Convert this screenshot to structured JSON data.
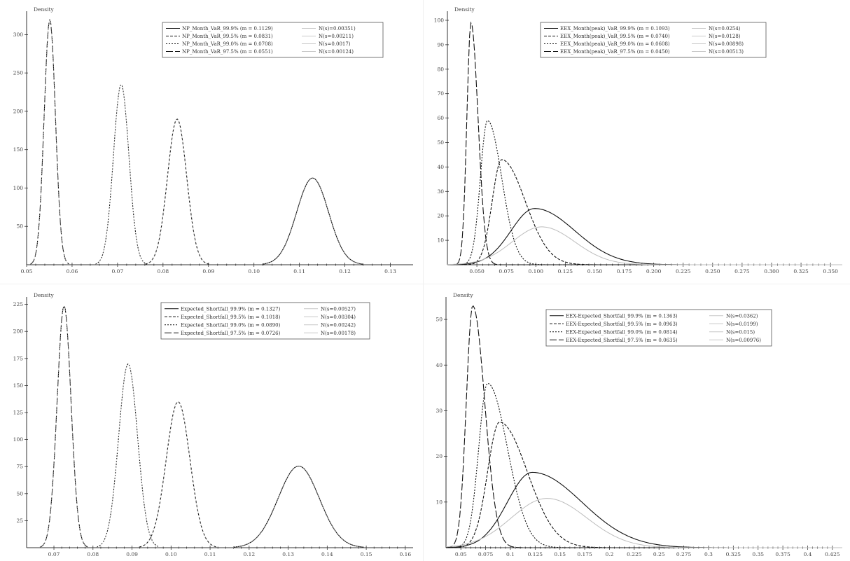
{
  "chart_data": [
    {
      "type": "line",
      "ylabel": "Density",
      "xlim": [
        0.05,
        0.135
      ],
      "ylim": [
        0,
        325
      ],
      "xticks": [
        0.05,
        0.06,
        0.07,
        0.08,
        0.09,
        0.1,
        0.11,
        0.12,
        0.13
      ],
      "xtick_labels": [
        "0.05",
        "0.06",
        "0.07",
        "0.08",
        "0.09",
        "0.10",
        "0.11",
        "0.12",
        "0.13"
      ],
      "yticks": [
        50,
        100,
        150,
        200,
        250,
        300
      ],
      "ytick_labels": [
        "50",
        "100",
        "150",
        "200",
        "250",
        "300"
      ],
      "legend": [
        {
          "label": "NP_Month_VaR_99.9% (m = 0.1129)",
          "normal": "N(s)=0.00351)",
          "dash": "none"
        },
        {
          "label": "NP_Month_VaR_99.5% (m = 0.0831)",
          "normal": "N(s=0.00211)",
          "dash": "4,2"
        },
        {
          "label": "NP_Month_VaR_99.0% (m = 0.0708)",
          "normal": "N(s=0.0017)",
          "dash": "2,2"
        },
        {
          "label": "NP_Month_VaR_97.5% (m = 0.0551)",
          "normal": "N(s=0.00124)",
          "dash": "10,3"
        }
      ],
      "series": [
        {
          "mean": 0.1129,
          "sd": 0.00351,
          "peak": 113,
          "dash": "none",
          "kind": "normal"
        },
        {
          "mean": 0.0831,
          "sd": 0.00211,
          "peak": 190,
          "dash": "4,2",
          "kind": "normal"
        },
        {
          "mean": 0.0708,
          "sd": 0.0017,
          "peak": 235,
          "dash": "2,2",
          "kind": "normal"
        },
        {
          "mean": 0.0551,
          "sd": 0.00124,
          "peak": 320,
          "dash": "10,3",
          "kind": "normal"
        }
      ]
    },
    {
      "type": "line",
      "ylabel": "Density",
      "xlim": [
        0.025,
        0.36
      ],
      "ylim": [
        0,
        102
      ],
      "xticks": [
        0.05,
        0.075,
        0.1,
        0.125,
        0.15,
        0.175,
        0.2,
        0.225,
        0.25,
        0.275,
        0.3,
        0.325,
        0.35
      ],
      "xtick_labels": [
        "0.050",
        "0.075",
        "0.100",
        "0.125",
        "0.150",
        "0.175",
        "0.200",
        "0.225",
        "0.250",
        "0.275",
        "0.300",
        "0.325",
        "0.350"
      ],
      "yticks": [
        10,
        20,
        30,
        40,
        50,
        60,
        70,
        80,
        90,
        100
      ],
      "ytick_labels": [
        "10",
        "20",
        "30",
        "40",
        "50",
        "60",
        "70",
        "80",
        "90",
        "100"
      ],
      "legend": [
        {
          "label": "EEX_Month(peak)_VaR_99.9% (m = 0.1093)",
          "normal": "N(s=0.0254)",
          "dash": "none"
        },
        {
          "label": "EEX_Month(peak)_VaR_99.5% (m = 0.0740)",
          "normal": "N(s=0.0128)",
          "dash": "4,2"
        },
        {
          "label": "EEX_Month(peak)_VaR_99.0% (m = 0.0608)",
          "normal": "N(s=0.00898)",
          "dash": "2,2"
        },
        {
          "label": "EEX_Month(peak)_VaR_97.5% (m = 0.0450)",
          "normal": "N(s=0.00513)",
          "dash": "10,3"
        }
      ],
      "series": [
        {
          "mode": 0.099,
          "peak": 23,
          "left": 0.02,
          "right": 0.034,
          "dash": "none",
          "kind": "skew"
        },
        {
          "mode": 0.071,
          "peak": 43,
          "left": 0.008,
          "right": 0.02,
          "dash": "4,2",
          "kind": "skew"
        },
        {
          "mode": 0.059,
          "peak": 59,
          "left": 0.006,
          "right": 0.012,
          "dash": "2,2",
          "kind": "skew"
        },
        {
          "mode": 0.045,
          "peak": 99,
          "left": 0.0035,
          "right": 0.006,
          "dash": "10,3",
          "kind": "skew"
        },
        {
          "mode": 0.105,
          "peak": 15.5,
          "left": 0.025,
          "right": 0.028,
          "dash": "none",
          "kind": "skew",
          "light": true
        }
      ]
    },
    {
      "type": "line",
      "ylabel": "Density",
      "xlim": [
        0.063,
        0.162
      ],
      "ylim": [
        0,
        228
      ],
      "xticks": [
        0.07,
        0.08,
        0.09,
        0.1,
        0.11,
        0.12,
        0.13,
        0.14,
        0.15,
        0.16
      ],
      "xtick_labels": [
        "0.07",
        "0.08",
        "0.09",
        "0.10",
        "0.11",
        "0.12",
        "0.13",
        "0.14",
        "0.15",
        "0.16"
      ],
      "yticks": [
        25,
        50,
        75,
        100,
        125,
        150,
        175,
        200,
        225
      ],
      "ytick_labels": [
        "25",
        "50",
        "75",
        "100",
        "125",
        "150",
        "175",
        "200",
        "225"
      ],
      "legend": [
        {
          "label": "Expected_Shortfall_99.9% (m = 0.1327)",
          "normal": "N(s=0.00527)",
          "dash": "none"
        },
        {
          "label": "Expected_Shortfall_99.5% (m = 0.1018)",
          "normal": "N(s=0.00304)",
          "dash": "4,2"
        },
        {
          "label": "Expected_Shortfall_99.0% (m = 0.0890)",
          "normal": "N(s=0.00242)",
          "dash": "2,2"
        },
        {
          "label": "Expected_Shortfall_97.5% (m = 0.0726)",
          "normal": "N(s=0.00178)",
          "dash": "10,3"
        }
      ],
      "series": [
        {
          "mean": 0.1327,
          "sd": 0.00527,
          "peak": 75.5,
          "dash": "none",
          "kind": "normal"
        },
        {
          "mean": 0.1018,
          "sd": 0.00304,
          "peak": 135,
          "dash": "4,2",
          "kind": "normal"
        },
        {
          "mean": 0.089,
          "sd": 0.00242,
          "peak": 170,
          "dash": "2,2",
          "kind": "normal"
        },
        {
          "mean": 0.0726,
          "sd": 0.00178,
          "peak": 224,
          "dash": "10,3",
          "kind": "normal"
        }
      ]
    },
    {
      "type": "line",
      "ylabel": "Density",
      "xlim": [
        0.035,
        0.435
      ],
      "ylim": [
        0,
        54
      ],
      "xticks": [
        0.05,
        0.075,
        0.1,
        0.125,
        0.15,
        0.175,
        0.2,
        0.225,
        0.25,
        0.275,
        0.3,
        0.325,
        0.35,
        0.375,
        0.4,
        0.425
      ],
      "xtick_labels": [
        "0.05",
        "0.075",
        "0.1",
        "0.125",
        "0.15",
        "0.175",
        "0.2",
        "0.225",
        "0.25",
        "0.275",
        "0.3",
        "0.325",
        "0.35",
        "0.375",
        "0.4",
        "0.425"
      ],
      "yticks": [
        10,
        20,
        30,
        40,
        50
      ],
      "ytick_labels": [
        "10",
        "20",
        "30",
        "40",
        "50"
      ],
      "legend": [
        {
          "label": "EEX-Expected_Shortfall_99.9% (m = 0.1363)",
          "normal": "N(s=0.0362)",
          "dash": "none"
        },
        {
          "label": "EEX-Expected_Shortfall_99.5% (m = 0.0963)",
          "normal": "N(s=0.0199)",
          "dash": "4,2"
        },
        {
          "label": "EEX-Expected_Shortfall_99.0% (m = 0.0814)",
          "normal": "N(s=0.015)",
          "dash": "2,2"
        },
        {
          "label": "EEX-Expected_Shortfall_97.5% (m = 0.0635)",
          "normal": "N(s=0.00976)",
          "dash": "10,3"
        }
      ],
      "series": [
        {
          "mode": 0.122,
          "peak": 16.5,
          "left": 0.025,
          "right": 0.05,
          "dash": "none",
          "kind": "skew"
        },
        {
          "mode": 0.089,
          "peak": 27.5,
          "left": 0.012,
          "right": 0.028,
          "dash": "4,2",
          "kind": "skew"
        },
        {
          "mode": 0.077,
          "peak": 36,
          "left": 0.009,
          "right": 0.02,
          "dash": "2,2",
          "kind": "skew"
        },
        {
          "mode": 0.062,
          "peak": 53,
          "left": 0.0065,
          "right": 0.012,
          "dash": "10,3",
          "kind": "skew"
        },
        {
          "mode": 0.137,
          "peak": 10.8,
          "left": 0.036,
          "right": 0.04,
          "dash": "none",
          "kind": "skew",
          "light": true
        }
      ]
    }
  ]
}
